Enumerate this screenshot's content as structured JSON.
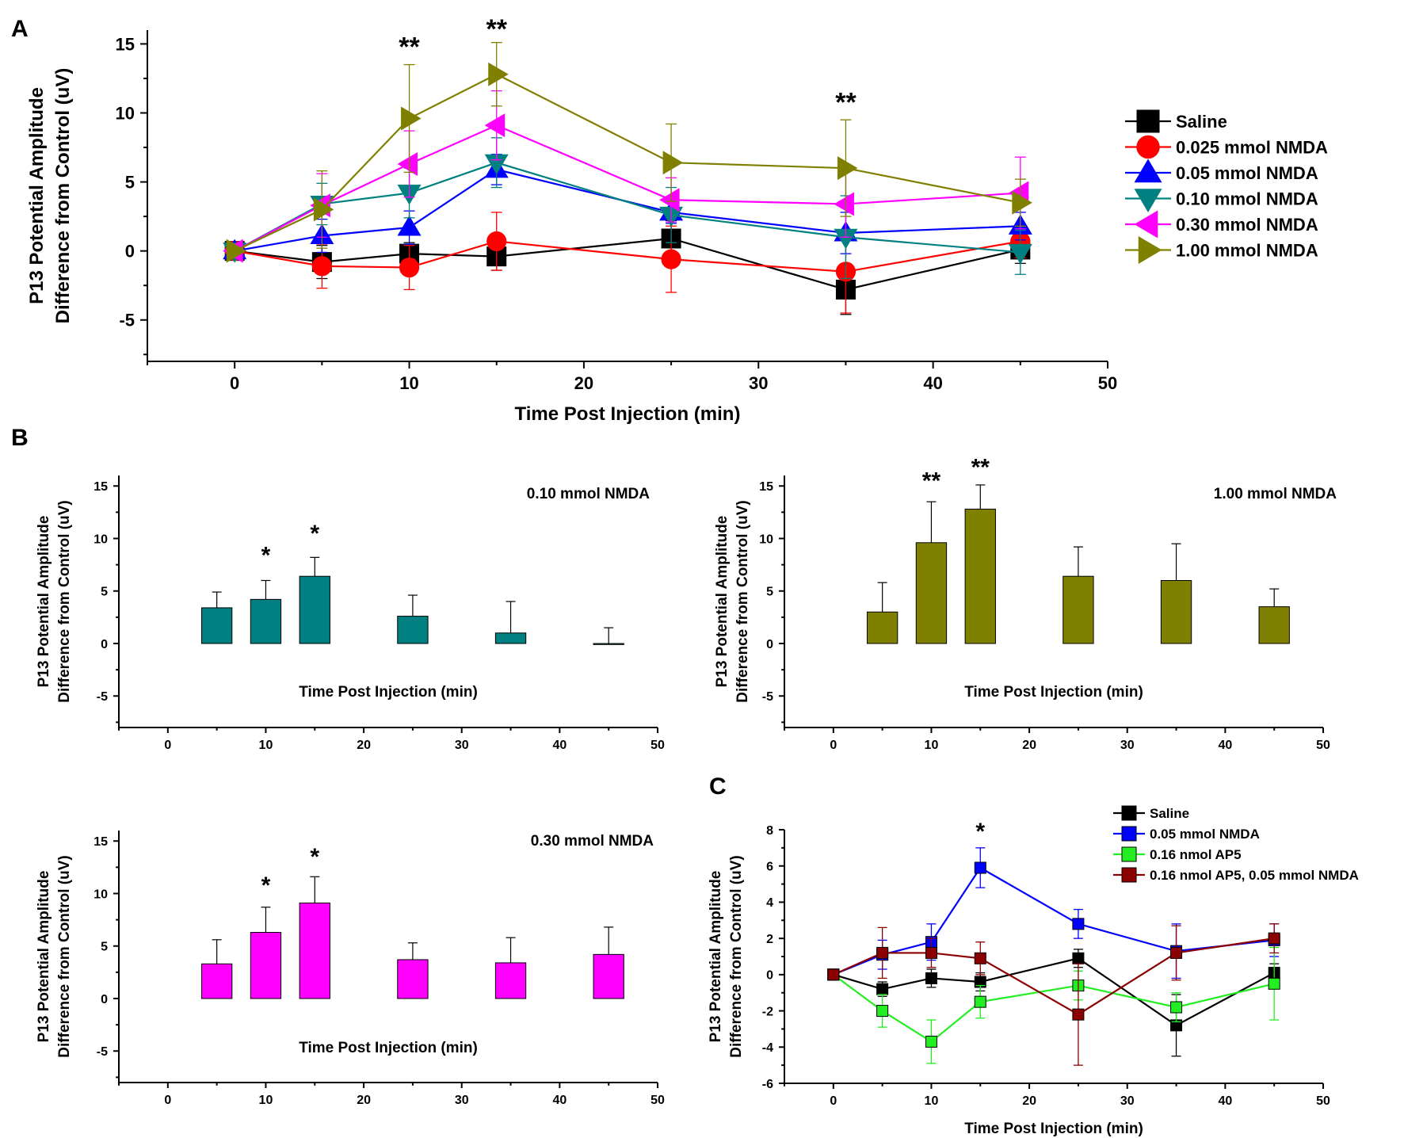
{
  "chart_data": [
    {
      "id": "A",
      "panel_label": "A",
      "type": "line",
      "title": "",
      "xlabel": "Time Post Injection (min)",
      "ylabel_lines": [
        "P13 Potential Amplitude",
        "Difference from Control (uV)"
      ],
      "xlim": [
        -5,
        50
      ],
      "ylim": [
        -8,
        16
      ],
      "xticks": [
        0,
        10,
        20,
        30,
        40,
        50
      ],
      "yticks": [
        -5,
        0,
        5,
        10,
        15
      ],
      "grid": false,
      "legend_position": "right",
      "x": [
        0,
        5,
        10,
        15,
        25,
        35,
        45
      ],
      "series": [
        {
          "name": "Saline",
          "color": "#000000",
          "marker": "square",
          "values": [
            0,
            -0.8,
            -0.2,
            -0.4,
            0.9,
            -2.8,
            0.1
          ],
          "errors": [
            0,
            1.2,
            0.8,
            1.0,
            1.3,
            1.8,
            1.0
          ]
        },
        {
          "name": "0.025 mmol NMDA",
          "color": "#ff0000",
          "marker": "circle",
          "values": [
            0,
            -1.1,
            -1.2,
            0.7,
            -0.6,
            -1.5,
            0.7
          ],
          "errors": [
            0,
            1.6,
            1.6,
            2.1,
            2.4,
            3.0,
            1.2
          ]
        },
        {
          "name": "0.05 mmol NMDA",
          "color": "#0000ff",
          "marker": "triangle-up",
          "values": [
            0,
            1.1,
            1.7,
            5.9,
            2.8,
            1.3,
            1.8
          ],
          "errors": [
            0,
            1.2,
            1.2,
            1.1,
            0.8,
            1.5,
            1.0
          ]
        },
        {
          "name": "0.10 mmol NMDA",
          "color": "#008080",
          "marker": "triangle-down",
          "values": [
            0,
            3.4,
            4.2,
            6.4,
            2.6,
            1.0,
            -0.1
          ],
          "errors": [
            0,
            1.5,
            1.8,
            1.8,
            2.0,
            3.0,
            1.6
          ]
        },
        {
          "name": "0.30 mmol NMDA",
          "color": "#ff00ff",
          "marker": "triangle-left",
          "values": [
            0,
            3.3,
            6.3,
            9.1,
            3.7,
            3.4,
            4.2
          ],
          "errors": [
            0,
            2.3,
            2.4,
            2.5,
            1.6,
            2.4,
            2.6
          ]
        },
        {
          "name": "1.00 mmol NMDA",
          "color": "#808000",
          "marker": "triangle-right",
          "values": [
            0,
            3.0,
            9.6,
            12.8,
            6.4,
            6.0,
            3.5
          ],
          "errors": [
            0,
            2.8,
            3.9,
            2.3,
            2.8,
            3.5,
            1.7
          ]
        }
      ],
      "annotations": [
        {
          "text": "**",
          "x": 10,
          "y": 15.2
        },
        {
          "text": "**",
          "x": 15,
          "y": 16.5
        },
        {
          "text": "**",
          "x": 35,
          "y": 11.2
        }
      ]
    },
    {
      "id": "B1",
      "panel_label": "B",
      "type": "bar",
      "title": "0.10 mmol NMDA",
      "xlabel": "Time Post Injection (min)",
      "ylabel_lines": [
        "P13 Potential Amplitude",
        "Difference from Control (uV)"
      ],
      "xlim": [
        -5,
        50
      ],
      "ylim": [
        -8,
        16
      ],
      "xticks": [
        0,
        10,
        20,
        30,
        40,
        50
      ],
      "yticks": [
        -5,
        0,
        5,
        10,
        15
      ],
      "color": "#008080",
      "x": [
        5,
        10,
        15,
        25,
        35,
        45
      ],
      "values": [
        3.4,
        4.2,
        6.4,
        2.6,
        1.0,
        -0.1
      ],
      "errors": [
        1.5,
        1.8,
        1.8,
        2.0,
        3.0,
        1.6
      ],
      "annotations": [
        {
          "text": "*",
          "x": 10,
          "y": 8.9
        },
        {
          "text": "*",
          "x": 15,
          "y": 11.0
        }
      ]
    },
    {
      "id": "B2",
      "panel_label": "",
      "type": "bar",
      "title": "1.00 mmol NMDA",
      "xlabel": "Time Post Injection (min)",
      "ylabel_lines": [
        "P13 Potential Amplitude",
        "Difference from Control (uV)"
      ],
      "xlim": [
        -5,
        50
      ],
      "ylim": [
        -8,
        16
      ],
      "xticks": [
        0,
        10,
        20,
        30,
        40,
        50
      ],
      "yticks": [
        -5,
        0,
        5,
        10,
        15
      ],
      "color": "#808000",
      "x": [
        5,
        10,
        15,
        25,
        35,
        45
      ],
      "values": [
        3.0,
        9.6,
        12.8,
        6.4,
        6.0,
        3.5
      ],
      "errors": [
        2.8,
        3.9,
        2.3,
        2.8,
        3.5,
        1.7
      ],
      "annotations": [
        {
          "text": "**",
          "x": 10,
          "y": 16.0
        },
        {
          "text": "**",
          "x": 15,
          "y": 17.3
        }
      ]
    },
    {
      "id": "B3",
      "panel_label": "",
      "type": "bar",
      "title": "0.30 mmol NMDA",
      "xlabel": "Time Post Injection (min)",
      "ylabel_lines": [
        "P13 Potential Amplitude",
        "Difference from Control (uV)"
      ],
      "xlim": [
        -5,
        50
      ],
      "ylim": [
        -8,
        16
      ],
      "xticks": [
        0,
        10,
        20,
        30,
        40,
        50
      ],
      "yticks": [
        -5,
        0,
        5,
        10,
        15
      ],
      "color": "#ff00ff",
      "x": [
        5,
        10,
        15,
        25,
        35,
        45
      ],
      "values": [
        3.3,
        6.3,
        9.1,
        3.7,
        3.4,
        4.2
      ],
      "errors": [
        2.3,
        2.4,
        2.5,
        1.6,
        2.4,
        2.6
      ],
      "annotations": [
        {
          "text": "*",
          "x": 10,
          "y": 11.3
        },
        {
          "text": "*",
          "x": 15,
          "y": 14.0
        }
      ]
    },
    {
      "id": "C",
      "panel_label": "C",
      "type": "line",
      "title": "",
      "xlabel": "Time Post Injection (min)",
      "ylabel_lines": [
        "P13 Potential Amplitude",
        "Difference from Control (uV)"
      ],
      "xlim": [
        -5,
        50
      ],
      "ylim": [
        -6,
        8
      ],
      "xticks": [
        0,
        10,
        20,
        30,
        40,
        50
      ],
      "yticks": [
        -6,
        -4,
        -2,
        0,
        2,
        4,
        6,
        8
      ],
      "legend_position": "top-right",
      "x": [
        0,
        5,
        10,
        15,
        25,
        35,
        45
      ],
      "series": [
        {
          "name": "Saline",
          "color": "#000000",
          "marker": "square",
          "values": [
            0,
            -0.8,
            -0.2,
            -0.4,
            0.9,
            -2.8,
            0.1
          ],
          "errors": [
            0,
            0.4,
            0.5,
            0.5,
            0.5,
            1.7,
            0.5
          ]
        },
        {
          "name": "0.05 mmol NMDA",
          "color": "#0000ff",
          "marker": "square",
          "values": [
            0,
            1.1,
            1.8,
            5.9,
            2.8,
            1.3,
            1.9
          ],
          "errors": [
            0,
            0.8,
            1.0,
            1.1,
            0.8,
            1.5,
            0.9
          ]
        },
        {
          "name": "0.16 nmol AP5",
          "color": "#22ee22",
          "marker": "square",
          "values": [
            0,
            -2.0,
            -3.7,
            -1.5,
            -0.6,
            -1.8,
            -0.5
          ],
          "errors": [
            0,
            0.9,
            1.2,
            0.9,
            0.8,
            0.8,
            2.0
          ]
        },
        {
          "name": "0.16 nmol AP5, 0.05 mmol NMDA",
          "color": "#8b0000",
          "marker": "square",
          "values": [
            0,
            1.2,
            1.2,
            0.9,
            -2.2,
            1.2,
            2.0
          ],
          "errors": [
            0,
            1.4,
            0.8,
            0.9,
            2.8,
            1.5,
            0.8
          ]
        }
      ],
      "annotations": [
        {
          "text": "*",
          "x": 15,
          "y": 8.2
        }
      ]
    }
  ]
}
